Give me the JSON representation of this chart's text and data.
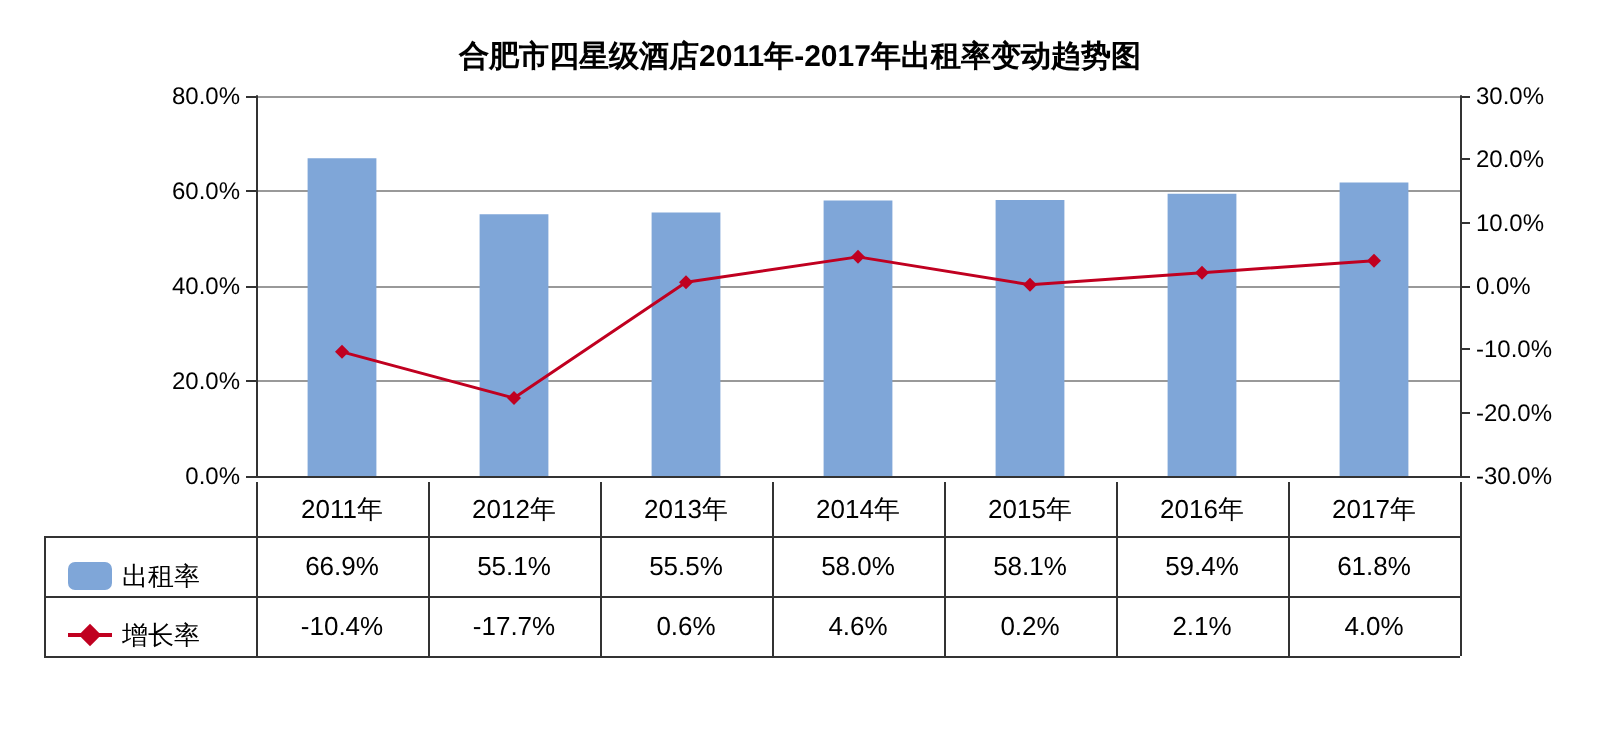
{
  "chart_data": {
    "type": "bar",
    "title": "合肥市四星级酒店2011年-2017年出租率变动趋势图",
    "categories": [
      "2011年",
      "2012年",
      "2013年",
      "2014年",
      "2015年",
      "2016年",
      "2017年"
    ],
    "series": [
      {
        "name": "出租率",
        "type": "bar",
        "color": "#7fa6d8",
        "values": [
          66.9,
          55.1,
          55.5,
          58.0,
          58.1,
          59.4,
          61.8
        ],
        "value_labels": [
          "66.9%",
          "55.1%",
          "55.5%",
          "58.0%",
          "58.1%",
          "59.4%",
          "61.8%"
        ]
      },
      {
        "name": "增长率",
        "type": "line",
        "axis": "y2",
        "color": "#c00020",
        "values": [
          -10.4,
          -17.7,
          0.6,
          4.6,
          0.2,
          2.1,
          4.0
        ],
        "value_labels": [
          "-10.4%",
          "-17.7%",
          "0.6%",
          "4.6%",
          "0.2%",
          "2.1%",
          "4.0%"
        ]
      }
    ],
    "ylim": [
      0,
      80
    ],
    "yticks": [
      {
        "value": 0,
        "label": "0.0%"
      },
      {
        "value": 20,
        "label": "20.0%"
      },
      {
        "value": 40,
        "label": "40.0%"
      },
      {
        "value": 60,
        "label": "60.0%"
      },
      {
        "value": 80,
        "label": "80.0%"
      }
    ],
    "y2lim": [
      -30,
      30
    ],
    "y2ticks": [
      {
        "value": -30,
        "label": "-30.0%"
      },
      {
        "value": -20,
        "label": "-20.0%"
      },
      {
        "value": -10,
        "label": "-10.0%"
      },
      {
        "value": 0,
        "label": "0.0%"
      },
      {
        "value": 10,
        "label": "10.0%"
      },
      {
        "value": 20,
        "label": "20.0%"
      },
      {
        "value": 30,
        "label": "30.0%"
      }
    ],
    "grid": "y",
    "legend": "bottom left",
    "marker": "diamond",
    "line_style": "solid"
  }
}
